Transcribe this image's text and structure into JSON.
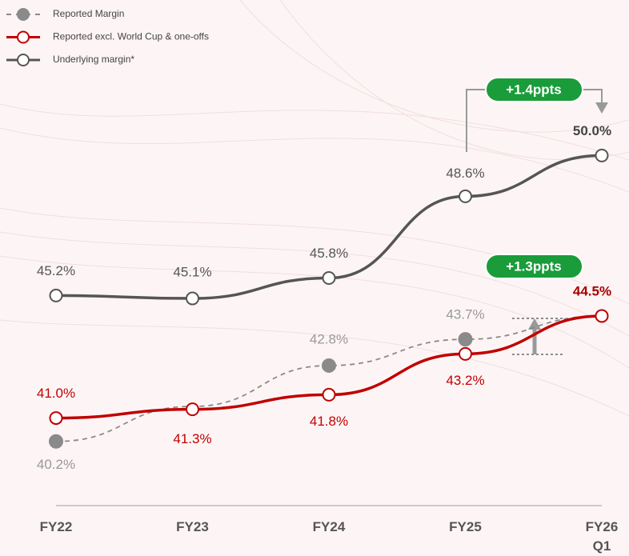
{
  "chart_data": {
    "type": "line",
    "categories": [
      "FY22",
      "FY23",
      "FY24",
      "FY25",
      "FY26 Q1"
    ],
    "series": [
      {
        "name": "Reported Margin",
        "color": "#8a8a8a",
        "style": "dashed",
        "marker": "filled",
        "values": [
          40.2,
          41.4,
          42.8,
          43.7,
          44.5
        ],
        "value_labels": [
          "40.2%",
          null,
          "42.8%",
          "43.7%",
          null
        ]
      },
      {
        "name": "Reported excl. World Cup & one-offs",
        "color": "#c00000",
        "style": "solid",
        "marker": "open",
        "values": [
          41.0,
          41.3,
          41.8,
          43.2,
          44.5
        ],
        "value_labels": [
          "41.0%",
          "41.3%",
          "41.8%",
          "43.2%",
          "44.5%"
        ]
      },
      {
        "name": "Underlying margin*",
        "color": "#555555",
        "style": "solid",
        "marker": "open",
        "values": [
          45.2,
          45.1,
          45.8,
          48.6,
          50.0
        ],
        "value_labels": [
          "45.2%",
          "45.1%",
          "45.8%",
          "48.6%",
          "50.0%"
        ]
      }
    ],
    "annotations": [
      "+1.4ppts",
      "+1.3ppts"
    ],
    "ylim": [
      38,
      55
    ]
  }
}
